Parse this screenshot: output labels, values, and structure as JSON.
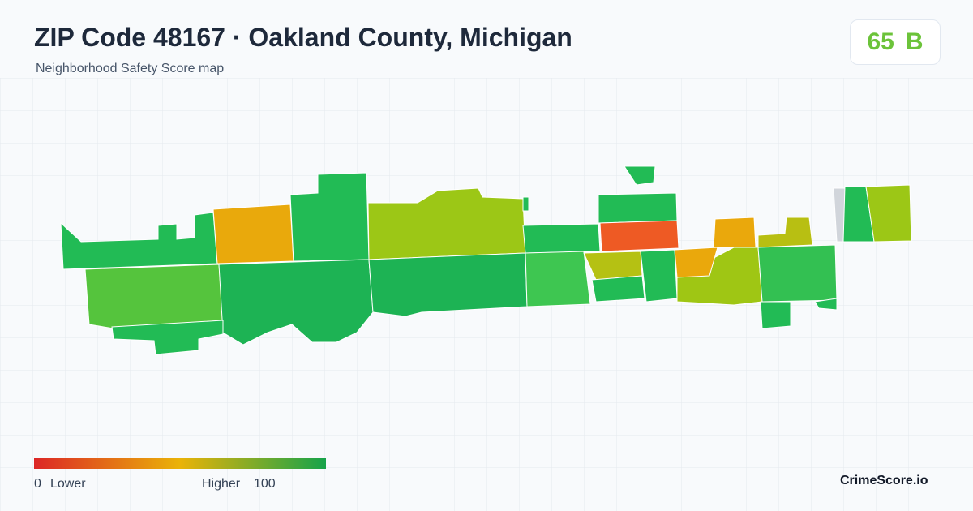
{
  "header": {
    "title": "ZIP Code 48167 · Oakland County, Michigan",
    "subtitle": "Neighborhood Safety Score map"
  },
  "score": {
    "value": 65,
    "grade": "B"
  },
  "legend": {
    "min": 0,
    "low_label": "Lower",
    "high_label": "Higher",
    "max": 100
  },
  "brand": "CrimeScore.io"
}
